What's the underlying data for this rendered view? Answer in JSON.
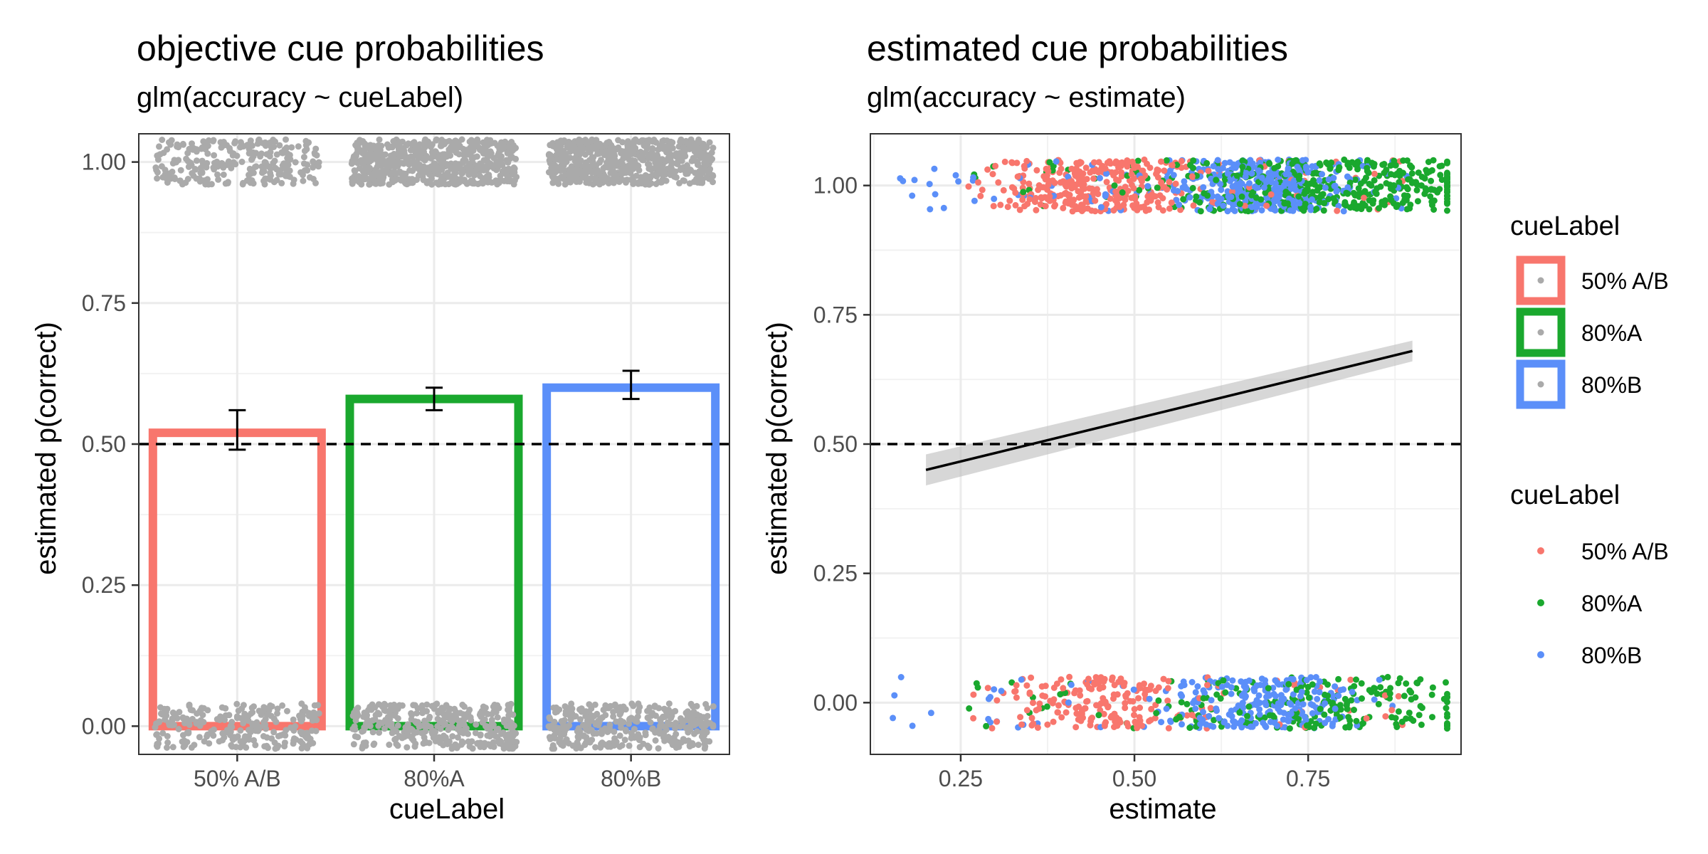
{
  "colors": {
    "50% A/B": "#f8766d",
    "80%A": "#1aa82e",
    "80%B": "#5b8ff9",
    "jitter": "#aaaaaa",
    "grid_major": "#ebebeb",
    "grid_minor": "#f2f2f2",
    "panel_border": "#333333",
    "ribbon": "#bdbdbd"
  },
  "chart_data": [
    {
      "type": "bar",
      "title": "objective cue probabilities",
      "subtitle": "glm(accuracy ~ cueLabel)",
      "xlabel": "cueLabel",
      "ylabel": "estimated p(correct)",
      "categories": [
        "50% A/B",
        "80%A",
        "80%B"
      ],
      "values": [
        0.52,
        0.58,
        0.6
      ],
      "error_low": [
        0.49,
        0.56,
        0.58
      ],
      "error_high": [
        0.56,
        0.6,
        0.63
      ],
      "reference_line": 0.5,
      "ylim": [
        -0.05,
        1.05
      ],
      "yticks": [
        0.0,
        0.25,
        0.5,
        0.75,
        1.0
      ],
      "ytick_labels": [
        "0.00",
        "0.25",
        "0.50",
        "0.75",
        "1.00"
      ],
      "grid": true,
      "jitter_points": "gray jittered raw accuracy (0/1) per category"
    },
    {
      "type": "scatter",
      "title": "estimated cue probabilities",
      "subtitle": "glm(accuracy ~ estimate)",
      "xlabel": "estimate",
      "ylabel": "estimated p(correct)",
      "xlim": [
        0.12,
        0.97
      ],
      "ylim": [
        -0.1,
        1.1
      ],
      "xticks": [
        0.25,
        0.5,
        0.75
      ],
      "xtick_labels": [
        "0.25",
        "0.50",
        "0.75"
      ],
      "yticks": [
        0.0,
        0.25,
        0.5,
        0.75,
        1.0
      ],
      "ytick_labels": [
        "0.00",
        "0.25",
        "0.50",
        "0.75",
        "1.00"
      ],
      "reference_line": 0.5,
      "fit_line": {
        "x": [
          0.2,
          0.9
        ],
        "y": [
          0.45,
          0.68
        ]
      },
      "fit_ribbon": {
        "x": [
          0.2,
          0.9
        ],
        "low": [
          0.42,
          0.66
        ],
        "high": [
          0.48,
          0.7
        ]
      },
      "series": [
        {
          "name": "50% A/B",
          "x_range": [
            0.25,
            0.9
          ],
          "x_mode": 0.45
        },
        {
          "name": "80%A",
          "x_range": [
            0.25,
            0.95
          ],
          "x_mode": 0.85
        },
        {
          "name": "80%B",
          "x_range": [
            0.15,
            0.9
          ],
          "x_mode": 0.68
        }
      ],
      "grid": true
    }
  ],
  "legends": [
    {
      "title": "cueLabel",
      "kind": "fill",
      "labels": [
        "50% A/B",
        "80%A",
        "80%B"
      ]
    },
    {
      "title": "cueLabel",
      "kind": "point",
      "labels": [
        "50% A/B",
        "80%A",
        "80%B"
      ]
    }
  ]
}
